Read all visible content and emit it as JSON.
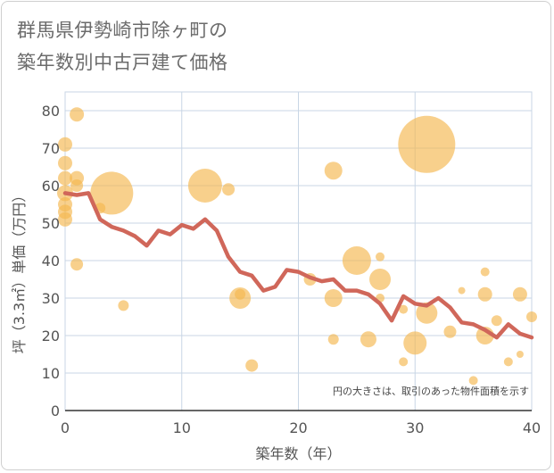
{
  "title": [
    "群馬県伊勢崎市除ヶ町の",
    "築年数別中古戸建て価格"
  ],
  "chart_data": {
    "type": "scatter+line",
    "title": "群馬県伊勢崎市除ヶ町の築年数別中古戸建て価格",
    "xlabel": "築年数（年）",
    "ylabel": "坪（3.3㎡）単価（万円）",
    "xlim": [
      0,
      40
    ],
    "ylim": [
      0,
      85
    ],
    "xticks": [
      0,
      10,
      20,
      30,
      40
    ],
    "yticks": [
      0,
      10,
      20,
      30,
      40,
      50,
      60,
      70,
      80
    ],
    "grid": true,
    "note": "円の大きさは、取引のあった物件面積を示す",
    "colors": {
      "bubble": "#f4b74e",
      "line": "#d0675a",
      "grid": "#c8d6e5"
    },
    "bubbles": [
      {
        "x": 0,
        "y": 71,
        "size": 8
      },
      {
        "x": 0,
        "y": 66,
        "size": 8
      },
      {
        "x": 0,
        "y": 62,
        "size": 8
      },
      {
        "x": 0,
        "y": 58,
        "size": 9
      },
      {
        "x": 0,
        "y": 55,
        "size": 8
      },
      {
        "x": 0,
        "y": 53,
        "size": 8
      },
      {
        "x": 0,
        "y": 51,
        "size": 8
      },
      {
        "x": 1,
        "y": 79,
        "size": 8
      },
      {
        "x": 1,
        "y": 62,
        "size": 8
      },
      {
        "x": 1,
        "y": 60,
        "size": 7
      },
      {
        "x": 1,
        "y": 39,
        "size": 7
      },
      {
        "x": 3,
        "y": 54,
        "size": 6
      },
      {
        "x": 4,
        "y": 58,
        "size": 24
      },
      {
        "x": 5,
        "y": 28,
        "size": 6
      },
      {
        "x": 12,
        "y": 60,
        "size": 19
      },
      {
        "x": 14,
        "y": 59,
        "size": 7
      },
      {
        "x": 15,
        "y": 31,
        "size": 6
      },
      {
        "x": 15,
        "y": 30,
        "size": 12
      },
      {
        "x": 16,
        "y": 12,
        "size": 7
      },
      {
        "x": 21,
        "y": 35,
        "size": 7
      },
      {
        "x": 23,
        "y": 64,
        "size": 10
      },
      {
        "x": 23,
        "y": 30,
        "size": 10
      },
      {
        "x": 23,
        "y": 19,
        "size": 6
      },
      {
        "x": 25,
        "y": 40,
        "size": 16
      },
      {
        "x": 26,
        "y": 19,
        "size": 9
      },
      {
        "x": 27,
        "y": 41,
        "size": 5
      },
      {
        "x": 27,
        "y": 35,
        "size": 12
      },
      {
        "x": 27,
        "y": 30,
        "size": 5
      },
      {
        "x": 29,
        "y": 13,
        "size": 5
      },
      {
        "x": 29,
        "y": 27,
        "size": 5
      },
      {
        "x": 30,
        "y": 18,
        "size": 13
      },
      {
        "x": 31,
        "y": 71,
        "size": 32
      },
      {
        "x": 31,
        "y": 26,
        "size": 12
      },
      {
        "x": 33,
        "y": 21,
        "size": 7
      },
      {
        "x": 34,
        "y": 32,
        "size": 4
      },
      {
        "x": 35,
        "y": 8,
        "size": 5
      },
      {
        "x": 36,
        "y": 37,
        "size": 5
      },
      {
        "x": 36,
        "y": 31,
        "size": 8
      },
      {
        "x": 36,
        "y": 20,
        "size": 10
      },
      {
        "x": 37,
        "y": 24,
        "size": 6
      },
      {
        "x": 38,
        "y": 13,
        "size": 5
      },
      {
        "x": 39,
        "y": 31,
        "size": 8
      },
      {
        "x": 39,
        "y": 15,
        "size": 4
      },
      {
        "x": 40,
        "y": 25,
        "size": 6
      }
    ],
    "line": {
      "x": [
        0,
        1,
        2,
        3,
        4,
        5,
        6,
        7,
        8,
        9,
        10,
        11,
        12,
        13,
        14,
        15,
        16,
        17,
        18,
        19,
        20,
        21,
        22,
        23,
        24,
        25,
        26,
        27,
        28,
        29,
        30,
        31,
        32,
        33,
        34,
        35,
        36,
        37,
        38,
        39,
        40
      ],
      "y": [
        58,
        57.5,
        58,
        51,
        49,
        48,
        46.5,
        44,
        48,
        47,
        49.5,
        48.5,
        51,
        48,
        41,
        37,
        36,
        32,
        33,
        37.5,
        37,
        35.5,
        34.5,
        35,
        32,
        32,
        31,
        28.5,
        24,
        30.5,
        28.5,
        28,
        30,
        27.5,
        23.5,
        23,
        21.5,
        19.5,
        23,
        20.5,
        19.5
      ]
    }
  }
}
